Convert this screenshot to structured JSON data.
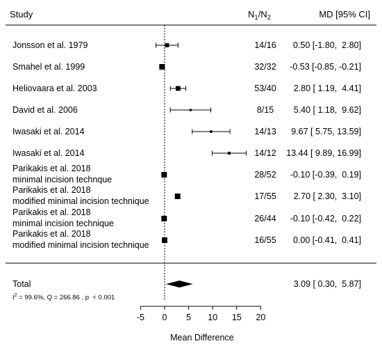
{
  "chart_data": {
    "type": "forest",
    "header": {
      "study": "Study",
      "n_main": "N",
      "n_sub1": "1",
      "n_slash": "/N",
      "n_sub2": "2",
      "md": "MD [95% CI]"
    },
    "studies": [
      {
        "label": [
          "Jonsson et al. 1979"
        ],
        "n": "14/16",
        "md": 0.5,
        "lo": -1.8,
        "hi": 2.8,
        "ci_text": "0.50 [-1.80,  2.80]"
      },
      {
        "label": [
          "Smahel et al. 1999"
        ],
        "n": "32/32",
        "md": -0.53,
        "lo": -0.85,
        "hi": -0.21,
        "ci_text": "-0.53 [-0.85, -0.21]"
      },
      {
        "label": [
          "Heliovaara et al. 2003"
        ],
        "n": "53/40",
        "md": 2.8,
        "lo": 1.19,
        "hi": 4.41,
        "ci_text": "2.80 [ 1.19,  4.41]"
      },
      {
        "label": [
          "David et al. 2006"
        ],
        "n": "8/15",
        "md": 5.4,
        "lo": 1.18,
        "hi": 9.62,
        "ci_text": "5.40 [ 1.18,  9.62]"
      },
      {
        "label": [
          "Iwasaki et al. 2014"
        ],
        "n": "14/13",
        "md": 9.67,
        "lo": 5.75,
        "hi": 13.59,
        "ci_text": "9.67 [ 5.75, 13.59]"
      },
      {
        "label": [
          "Iwasaki et al. 2014"
        ],
        "n": "14/12",
        "md": 13.44,
        "lo": 9.89,
        "hi": 16.99,
        "ci_text": "13.44 [ 9.89, 16.99]"
      },
      {
        "label": [
          "Parikakis et al. 2018",
          "minimal incision technque"
        ],
        "n": "28/52",
        "md": -0.1,
        "lo": -0.39,
        "hi": 0.19,
        "ci_text": "-0.10 [-0.39,  0.19]"
      },
      {
        "label": [
          "Parikakis et al. 2018",
          "modified minimal incision technique"
        ],
        "n": "17/55",
        "md": 2.7,
        "lo": 2.3,
        "hi": 3.1,
        "ci_text": "2.70 [ 2.30,  3.10]"
      },
      {
        "label": [
          "Parikakis et al. 2018",
          "minimal incision technique"
        ],
        "n": "26/44",
        "md": -0.1,
        "lo": -0.42,
        "hi": 0.22,
        "ci_text": "-0.10 [-0.42,  0.22]"
      },
      {
        "label": [
          "Parikakis et al. 2018",
          "modified minimal incision technique"
        ],
        "n": "16/55",
        "md": 0.0,
        "lo": -0.41,
        "hi": 0.41,
        "ci_text": "0.00 [-0.41,  0.41]"
      }
    ],
    "total": {
      "label": "Total",
      "md": 3.09,
      "lo": 0.3,
      "hi": 5.87,
      "ci_text": "3.09 [ 0.30,  5.87]",
      "het_i": "I",
      "het_sup": "2",
      "het_rest": " = 99.6%, Q = 266.86 , p  < 0.001"
    },
    "xaxis": {
      "label": "Mean Difference",
      "ticks": [
        -5,
        0,
        5,
        10,
        15,
        20
      ],
      "xlim": [
        -5,
        20
      ],
      "reference_line": 0
    }
  }
}
